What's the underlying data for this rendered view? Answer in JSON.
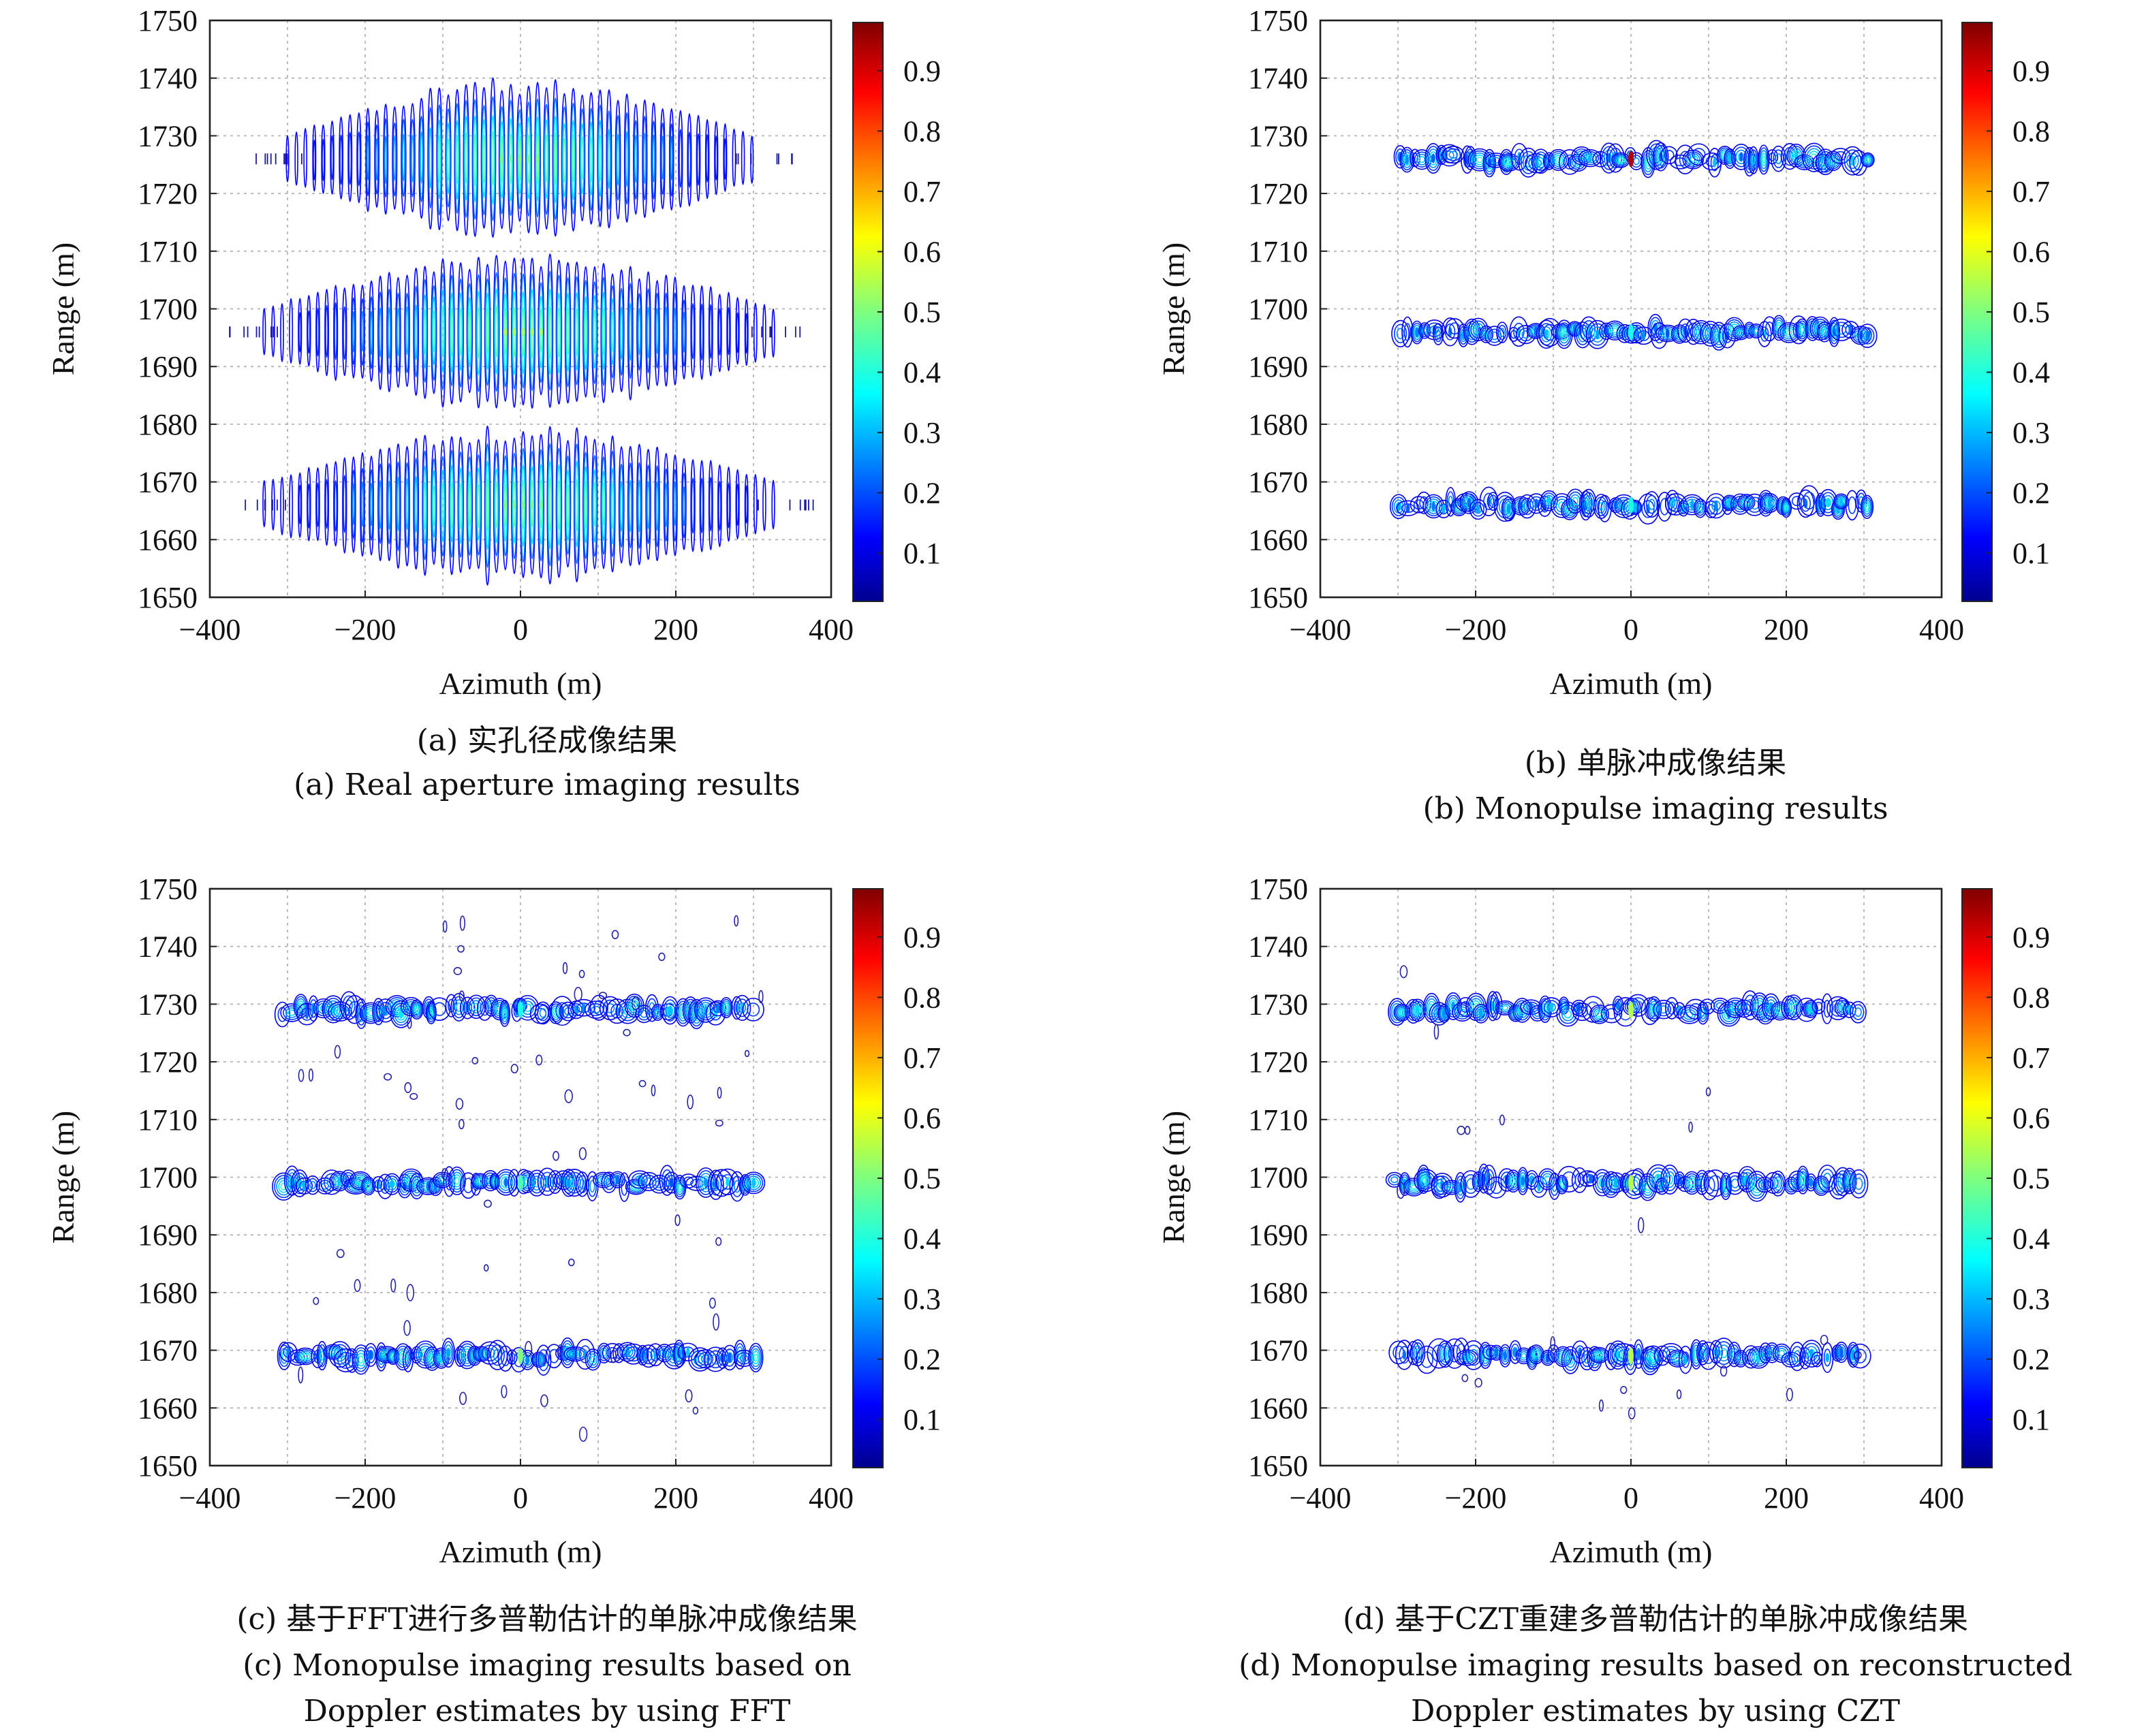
{
  "chart_data": [
    {
      "type": "heatmap",
      "panel": "a",
      "caption_cn": "(a) 实孔径成像结果",
      "caption_en": [
        "(a) Real aperture imaging results"
      ],
      "xlabel": "Azimuth (m)",
      "ylabel": "Range (m)",
      "xlim": [
        -400,
        400
      ],
      "ylim": [
        1650,
        1750
      ],
      "xticks": [
        -400,
        -200,
        0,
        200,
        400
      ],
      "yticks": [
        1650,
        1660,
        1670,
        1680,
        1690,
        1700,
        1710,
        1720,
        1730,
        1740,
        1750
      ],
      "grid": true,
      "colorbar": {
        "ticks": [
          0.1,
          0.2,
          0.3,
          0.4,
          0.5,
          0.6,
          0.7,
          0.8,
          0.9
        ],
        "range": [
          0.02,
          0.98
        ],
        "colormap": "jet"
      },
      "pattern": "vertical-stripes",
      "targets": [
        {
          "range": 1726,
          "azimuth_extent": [
            -300,
            300
          ],
          "halfwidth": 300,
          "peak": 0.5
        },
        {
          "range": 1696,
          "azimuth_extent": [
            -300,
            300
          ],
          "halfwidth": 330,
          "peak": 0.55
        },
        {
          "range": 1666,
          "azimuth_extent": [
            -300,
            300
          ],
          "halfwidth": 330,
          "peak": 0.5
        }
      ]
    },
    {
      "type": "heatmap",
      "panel": "b",
      "caption_cn": "(b) 单脉冲成像结果",
      "caption_en": [
        "(b) Monopulse imaging results"
      ],
      "xlabel": "Azimuth (m)",
      "ylabel": "Range (m)",
      "xlim": [
        -400,
        400
      ],
      "ylim": [
        1650,
        1750
      ],
      "xticks": [
        -400,
        -200,
        0,
        200,
        400
      ],
      "yticks": [
        1650,
        1660,
        1670,
        1680,
        1690,
        1700,
        1710,
        1720,
        1730,
        1740,
        1750
      ],
      "grid": true,
      "colorbar": {
        "ticks": [
          0.1,
          0.2,
          0.3,
          0.4,
          0.5,
          0.6,
          0.7,
          0.8,
          0.9
        ],
        "range": [
          0.02,
          0.98
        ],
        "colormap": "jet"
      },
      "pattern": "horizontal-contours",
      "targets": [
        {
          "range": 1726,
          "azimuth_extent": [
            -300,
            310
          ],
          "peak": 0.95
        },
        {
          "range": 1696,
          "azimuth_extent": [
            -300,
            310
          ],
          "peak": 0.4
        },
        {
          "range": 1666,
          "azimuth_extent": [
            -300,
            310
          ],
          "peak": 0.4
        }
      ]
    },
    {
      "type": "heatmap",
      "panel": "c",
      "caption_cn": "(c) 基于FFT进行多普勒估计的单脉冲成像结果",
      "caption_en": [
        "(c) Monopulse imaging results based on",
        "Doppler estimates by using FFT"
      ],
      "xlabel": "Azimuth (m)",
      "ylabel": "Range (m)",
      "xlim": [
        -400,
        400
      ],
      "ylim": [
        1650,
        1750
      ],
      "xticks": [
        -400,
        -200,
        0,
        200,
        400
      ],
      "yticks": [
        1650,
        1660,
        1670,
        1680,
        1690,
        1700,
        1710,
        1720,
        1730,
        1740,
        1750
      ],
      "grid": true,
      "colorbar": {
        "ticks": [
          0.1,
          0.2,
          0.3,
          0.4,
          0.5,
          0.6,
          0.7,
          0.8,
          0.9
        ],
        "range": [
          0.02,
          0.98
        ],
        "colormap": "jet"
      },
      "pattern": "horizontal-contours",
      "targets": [
        {
          "range": 1729,
          "azimuth_extent": [
            -310,
            305
          ],
          "peak": 0.4
        },
        {
          "range": 1699,
          "azimuth_extent": [
            -310,
            305
          ],
          "peak": 0.45
        },
        {
          "range": 1669,
          "azimuth_extent": [
            -310,
            305
          ],
          "peak": 0.5
        }
      ]
    },
    {
      "type": "heatmap",
      "panel": "d",
      "caption_cn": "(d) 基于CZT重建多普勒估计的单脉冲成像结果",
      "caption_en": [
        "(d) Monopulse imaging results based on reconstructed",
        "Doppler estimates by using CZT"
      ],
      "xlabel": "Azimuth (m)",
      "ylabel": "Range (m)",
      "xlim": [
        -400,
        400
      ],
      "ylim": [
        1650,
        1750
      ],
      "xticks": [
        -400,
        -200,
        0,
        200,
        400
      ],
      "yticks": [
        1650,
        1660,
        1670,
        1680,
        1690,
        1700,
        1710,
        1720,
        1730,
        1740,
        1750
      ],
      "grid": true,
      "colorbar": {
        "ticks": [
          0.1,
          0.2,
          0.3,
          0.4,
          0.5,
          0.6,
          0.7,
          0.8,
          0.9
        ],
        "range": [
          0.02,
          0.98
        ],
        "colormap": "jet"
      },
      "pattern": "horizontal-contours",
      "targets": [
        {
          "range": 1729,
          "azimuth_extent": [
            -305,
            300
          ],
          "peak": 0.55
        },
        {
          "range": 1699,
          "azimuth_extent": [
            -305,
            300
          ],
          "peak": 0.55
        },
        {
          "range": 1669,
          "azimuth_extent": [
            -305,
            300
          ],
          "peak": 0.55
        }
      ]
    }
  ]
}
